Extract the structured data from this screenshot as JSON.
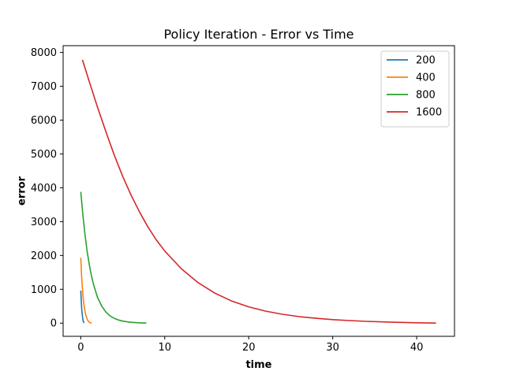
{
  "chart_data": {
    "type": "line",
    "title": "Policy Iteration - Error vs Time",
    "xlabel": "time",
    "ylabel": "error",
    "xlim": [
      -2.1,
      44.5
    ],
    "ylim": [
      -390,
      8200
    ],
    "xticks": [
      0,
      10,
      20,
      30,
      40
    ],
    "yticks": [
      0,
      1000,
      2000,
      3000,
      4000,
      5000,
      6000,
      7000,
      8000
    ],
    "grid": false,
    "legend_position": "top-right",
    "series": [
      {
        "name": "200",
        "color": "#1f77b4",
        "x": [
          0.0,
          0.05,
          0.1,
          0.15,
          0.2,
          0.25,
          0.3,
          0.35,
          0.4
        ],
        "y": [
          960,
          690,
          480,
          320,
          200,
          115,
          60,
          22,
          5
        ]
      },
      {
        "name": "400",
        "color": "#ff7f0e",
        "x": [
          0.0,
          0.1,
          0.2,
          0.3,
          0.4,
          0.5,
          0.6,
          0.7,
          0.8,
          0.9,
          1.0,
          1.1,
          1.2,
          1.3
        ],
        "y": [
          1930,
          1400,
          1010,
          720,
          510,
          355,
          240,
          160,
          100,
          60,
          32,
          14,
          5,
          1
        ]
      },
      {
        "name": "800",
        "color": "#2ca02c",
        "x": [
          0.0,
          0.25,
          0.5,
          0.75,
          1.0,
          1.25,
          1.5,
          2.0,
          2.5,
          3.0,
          3.5,
          4.0,
          4.5,
          5.0,
          5.5,
          6.0,
          6.5,
          7.0,
          7.5,
          7.8
        ],
        "y": [
          3880,
          3200,
          2620,
          2140,
          1750,
          1420,
          1160,
          760,
          500,
          325,
          210,
          140,
          92,
          60,
          38,
          24,
          14,
          7,
          3,
          1
        ]
      },
      {
        "name": "1600",
        "color": "#d62728",
        "x": [
          0.2,
          1,
          2,
          3,
          4,
          5,
          6,
          7,
          8,
          9,
          10,
          12,
          14,
          16,
          18,
          20,
          22,
          24,
          26,
          28,
          30,
          32,
          34,
          36,
          38,
          40,
          42.3
        ],
        "y": [
          7780,
          7150,
          6380,
          5650,
          4960,
          4330,
          3780,
          3280,
          2840,
          2460,
          2130,
          1600,
          1190,
          880,
          650,
          480,
          355,
          262,
          193,
          142,
          104,
          75,
          53,
          36,
          22,
          11,
          2
        ]
      }
    ]
  }
}
